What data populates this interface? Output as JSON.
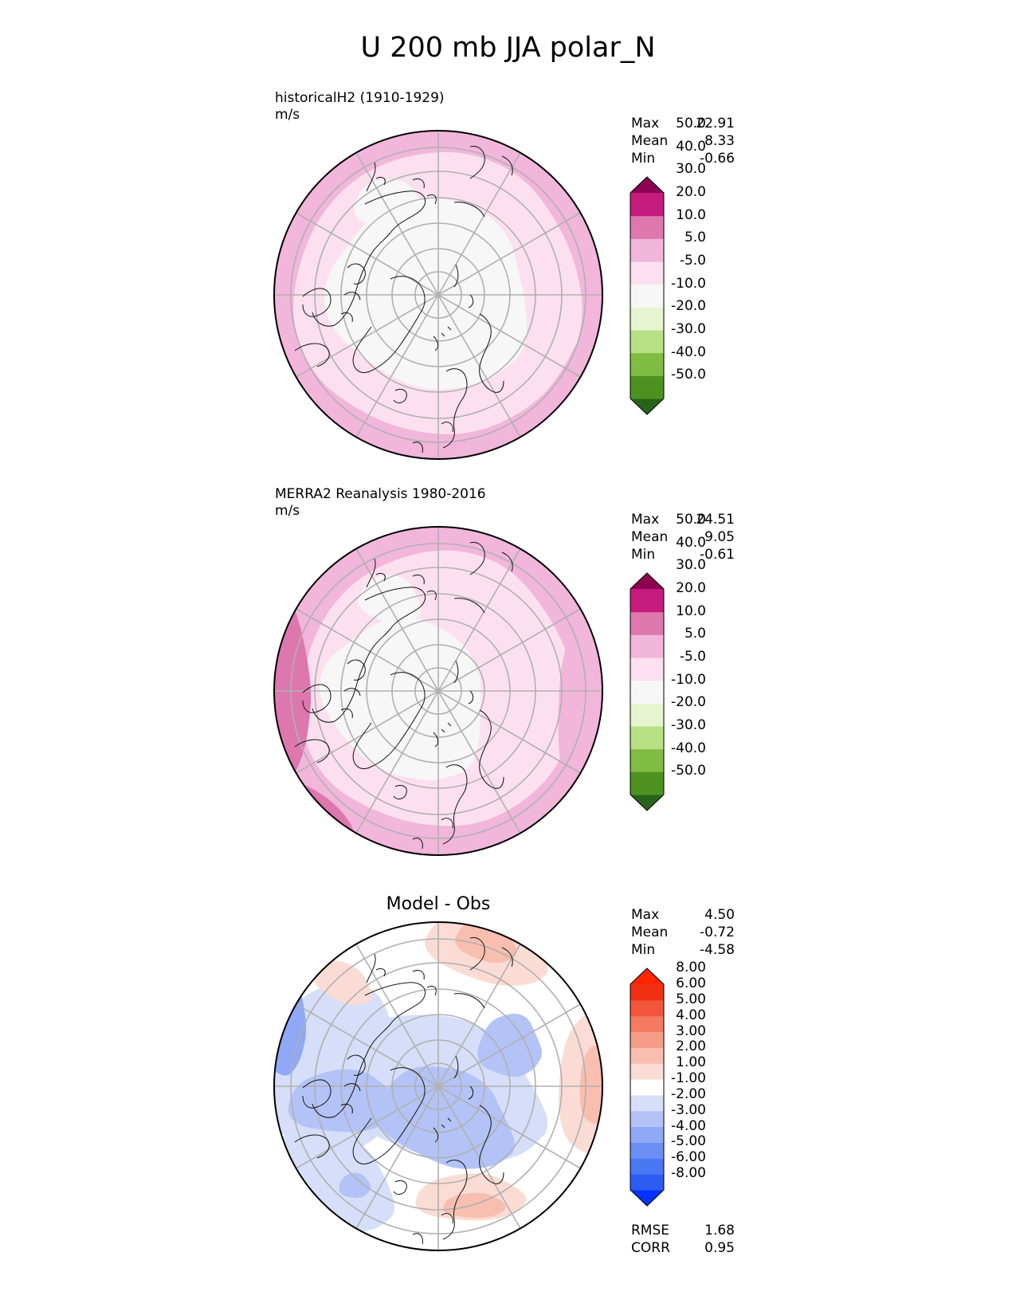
{
  "title": "U 200 mb JJA polar_N",
  "colors": {
    "seq": [
      "#276419",
      "#4d9221",
      "#7fbc41",
      "#b8e186",
      "#e6f5d0",
      "#f7f7f7",
      "#fde0ef",
      "#f1b6da",
      "#de77ae",
      "#c51b7d",
      "#8e0152"
    ],
    "div": [
      "#0433ff",
      "#2c5cf2",
      "#4a78f5",
      "#6b8ef5",
      "#8fa8f7",
      "#b3c3f7",
      "#d6def9",
      "#ffffff",
      "#fbdcd4",
      "#f8bfb0",
      "#f59c88",
      "#f47a61",
      "#f2573b",
      "#f02f14",
      "#ff2600"
    ]
  },
  "chart_data": [
    {
      "type": "contour_map",
      "projection": "north polar stereographic",
      "panel": "model",
      "title": "historicalH2 (1910-1929)",
      "units": "m/s",
      "stats": [
        {
          "label": "Max",
          "value": "22.91"
        },
        {
          "label": "Mean",
          "value": "8.33"
        },
        {
          "label": "Min",
          "value": "-0.66"
        }
      ],
      "colorbar": {
        "levels": [
          "-50.0",
          "-40.0",
          "-30.0",
          "-20.0",
          "-10.0",
          "-5.0",
          "5.0",
          "10.0",
          "20.0",
          "30.0",
          "40.0",
          "50.0"
        ],
        "extend": "both",
        "palette": "seq"
      }
    },
    {
      "type": "contour_map",
      "projection": "north polar stereographic",
      "panel": "obs",
      "title": "MERRA2 Reanalysis 1980-2016",
      "units": "m/s",
      "stats": [
        {
          "label": "Max",
          "value": "24.51"
        },
        {
          "label": "Mean",
          "value": "9.05"
        },
        {
          "label": "Min",
          "value": "-0.61"
        }
      ],
      "colorbar": {
        "levels": [
          "-50.0",
          "-40.0",
          "-30.0",
          "-20.0",
          "-10.0",
          "-5.0",
          "5.0",
          "10.0",
          "20.0",
          "30.0",
          "40.0",
          "50.0"
        ],
        "extend": "both",
        "palette": "seq"
      }
    },
    {
      "type": "contour_map",
      "projection": "north polar stereographic",
      "panel": "diff",
      "title": "Model - Obs",
      "stats": [
        {
          "label": "Max",
          "value": "4.50"
        },
        {
          "label": "Mean",
          "value": "-0.72"
        },
        {
          "label": "Min",
          "value": "-4.58"
        }
      ],
      "colorbar": {
        "levels": [
          "-8.00",
          "-6.00",
          "-5.00",
          "-4.00",
          "-3.00",
          "-2.00",
          "-1.00",
          "1.00",
          "2.00",
          "3.00",
          "4.00",
          "5.00",
          "6.00",
          "8.00"
        ],
        "extend": "both",
        "palette": "div"
      },
      "metrics": [
        {
          "label": "RMSE",
          "value": "1.68"
        },
        {
          "label": "CORR",
          "value": "0.95"
        }
      ]
    }
  ]
}
